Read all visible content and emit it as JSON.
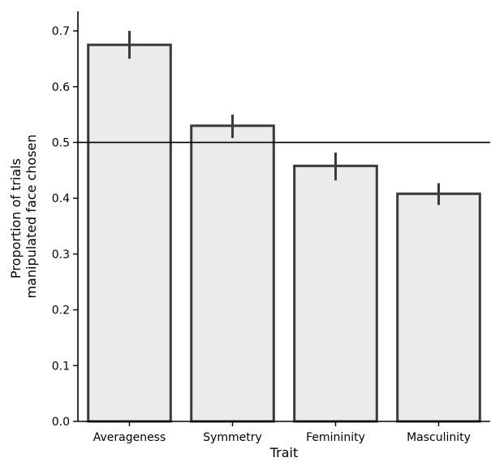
{
  "chart_data": {
    "type": "bar",
    "xlabel": "Trait",
    "ylabel_lines": [
      "Proportion of trials",
      "manipulated face chosen"
    ],
    "categories": [
      "Averageness",
      "Symmetry",
      "Femininity",
      "Masculinity"
    ],
    "values": [
      0.675,
      0.53,
      0.458,
      0.408
    ],
    "error_low": [
      0.65,
      0.508,
      0.432,
      0.388
    ],
    "error_high": [
      0.7,
      0.55,
      0.482,
      0.427
    ],
    "reference_line": 0.5,
    "ylim": [
      0,
      0.735
    ],
    "yticks": [
      0.0,
      0.1,
      0.2,
      0.3,
      0.4,
      0.5,
      0.6,
      0.7
    ],
    "ytick_labels": [
      "0.0",
      "0.1",
      "0.2",
      "0.3",
      "0.4",
      "0.5",
      "0.6",
      "0.7"
    ],
    "grid": false,
    "colors": {
      "bar_fill": "#ebebeb",
      "bar_edge": "#3a3a3a",
      "error_bar": "#3a3a3a",
      "reference_line": "#000000",
      "axis": "#000000"
    }
  }
}
